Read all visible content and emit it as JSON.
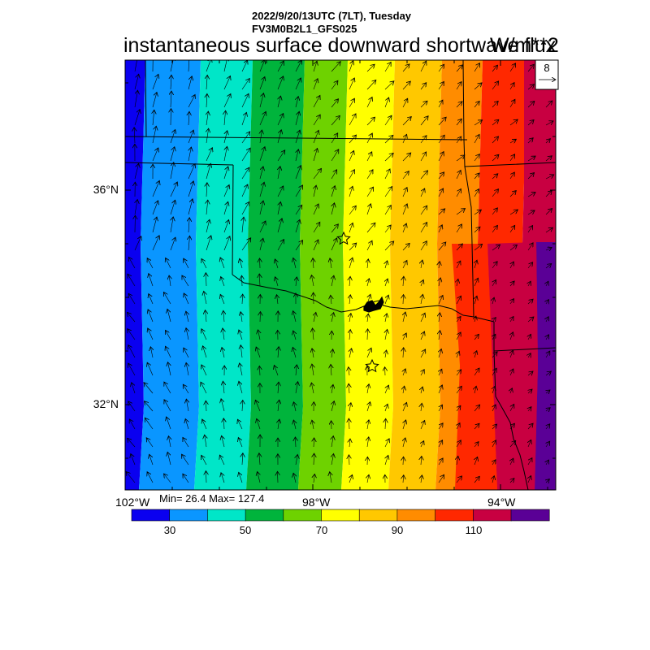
{
  "header": {
    "line1": "2022/9/20/13UTC (7LT), Tuesday",
    "line2": "FV3M0B2L1_GFS025"
  },
  "title": "instantaneous surface downward shortwave flux",
  "units": "W/m**2",
  "stats": "Min= 26.4 Max= 127.4",
  "vector_reference": {
    "label": "8"
  },
  "axes": {
    "x_tick_labels": [
      "102°W",
      "98°W",
      "94°W"
    ],
    "y_tick_labels": [
      "36°N",
      "32°N"
    ]
  },
  "colorbar": {
    "colors": [
      "#0a00f0",
      "#0a96ff",
      "#00e6c8",
      "#00b43c",
      "#6ed200",
      "#ffff00",
      "#ffc800",
      "#ff8c00",
      "#ff2800",
      "#c80041",
      "#5a0096"
    ],
    "tick_labels": [
      "30",
      "50",
      "70",
      "90",
      "110"
    ]
  },
  "chart_data": {
    "type": "heatmap",
    "field": "instantaneous surface downward shortwave flux",
    "units": "W/m**2",
    "min": 26.4,
    "max": 127.4,
    "contour_levels": [
      20,
      30,
      40,
      50,
      60,
      70,
      80,
      90,
      100,
      110,
      120,
      130
    ],
    "colorbar_ticks": [
      30,
      50,
      70,
      90,
      110
    ],
    "x_ticks": [
      "102°W",
      "98°W",
      "94°W"
    ],
    "y_ticks": [
      "36°N",
      "32°N"
    ],
    "markers": [
      "star",
      "star"
    ]
  }
}
